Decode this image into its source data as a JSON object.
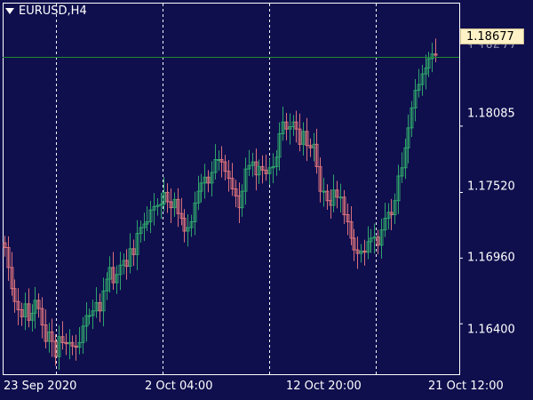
{
  "header": {
    "symbol_timeframe": "EURUSD,H4",
    "menu_icon": "triangle-down-icon"
  },
  "current_price": "1.18677",
  "colors": {
    "background": "#0f0f4e",
    "bull_candle": "#2ea36a",
    "bear_candle": "#d9707a",
    "current_price_line": "#1f8a2f",
    "separator_lines": "#ffffff",
    "price_box_bg": "#fff2c6"
  },
  "chart_data": {
    "type": "candlestick",
    "symbol": "EURUSD",
    "timeframe": "H4",
    "y_axis": {
      "ticks": [
        "1.18085",
        "1.17520",
        "1.16960",
        "1.16400"
      ],
      "ylim": [
        1.1597,
        1.1913
      ]
    },
    "x_axis": {
      "ticks": [
        "23 Sep 2020",
        "2 Oct 04:00",
        "12 Oct 20:00",
        "21 Oct 12:00"
      ]
    },
    "period_separators": 4,
    "candles_close": [
      1.1705,
      1.1688,
      1.167,
      1.1659,
      1.1652,
      1.1646,
      1.1657,
      1.1643,
      1.1649,
      1.166,
      1.1653,
      1.1639,
      1.1625,
      1.1633,
      1.1625,
      1.1612,
      1.1629,
      1.1624,
      1.1623,
      1.1624,
      1.1621,
      1.162,
      1.1624,
      1.1638,
      1.1647,
      1.1647,
      1.1651,
      1.1658,
      1.1651,
      1.1668,
      1.1678,
      1.1688,
      1.1675,
      1.1682,
      1.169,
      1.1694,
      1.1689,
      1.1704,
      1.1699,
      1.1717,
      1.1722,
      1.1725,
      1.1727,
      1.1737,
      1.174,
      1.1741,
      1.1742,
      1.1752,
      1.1744,
      1.1739,
      1.1746,
      1.1734,
      1.173,
      1.1719,
      1.1722,
      1.1727,
      1.1743,
      1.1753,
      1.176,
      1.1765,
      1.176,
      1.1769,
      1.178,
      1.178,
      1.1778,
      1.177,
      1.1764,
      1.1755,
      1.1749,
      1.1739,
      1.1753,
      1.1772,
      1.1775,
      1.1778,
      1.1767,
      1.1774,
      1.1771,
      1.1768,
      1.1773,
      1.1774,
      1.1782,
      1.1802,
      1.1812,
      1.1806,
      1.1808,
      1.1812,
      1.1806,
      1.1793,
      1.1804,
      1.1792,
      1.179,
      1.1793,
      1.1774,
      1.1753,
      1.1753,
      1.1745,
      1.1741,
      1.1754,
      1.1748,
      1.1748,
      1.1733,
      1.1727,
      1.1713,
      1.1703,
      1.17,
      1.1702,
      1.1701,
      1.171,
      1.1713,
      1.1714,
      1.1707,
      1.172,
      1.173,
      1.1735,
      1.1733,
      1.1745,
      1.1766,
      1.1773,
      1.179,
      1.1807,
      1.1824,
      1.1839,
      1.1844,
      1.1853,
      1.1858,
      1.1866,
      1.187,
      1.1869
    ]
  }
}
